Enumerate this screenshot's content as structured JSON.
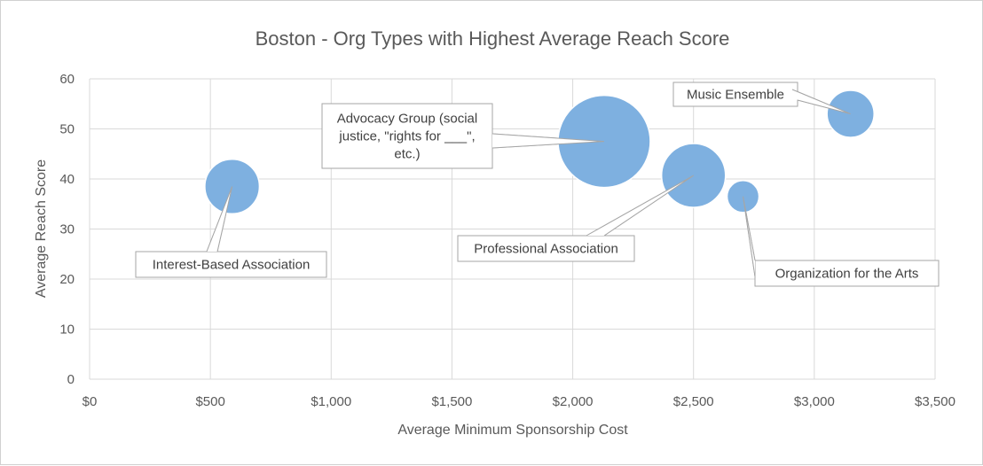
{
  "chart_data": {
    "type": "bubble",
    "title": "Boston - Org Types with Highest Average Reach Score",
    "xlabel": "Average Minimum Sponsorship Cost",
    "ylabel": "Average Reach Score",
    "xlim": [
      0,
      3500
    ],
    "ylim": [
      0,
      60
    ],
    "x_ticks": [
      "$0",
      "$500",
      "$1,000",
      "$1,500",
      "$2,000",
      "$2,500",
      "$3,000",
      "$3,500"
    ],
    "y_ticks": [
      "0",
      "10",
      "20",
      "30",
      "40",
      "50",
      "60"
    ],
    "grid": true,
    "bubble_color": "#7eb0e0",
    "points": [
      {
        "label": "Interest-Based Association",
        "x": 590,
        "y": 38.5,
        "size": 0.35
      },
      {
        "label": "Advocacy Group (social justice, \"rights for ___\", etc.)",
        "x": 2130,
        "y": 47.5,
        "size": 1.0
      },
      {
        "label": "Professional Association",
        "x": 2500,
        "y": 40.7,
        "size": 0.48
      },
      {
        "label": "Organization for the Arts",
        "x": 2705,
        "y": 36.5,
        "size": 0.12
      },
      {
        "label": "Music Ensemble",
        "x": 3150,
        "y": 53,
        "size": 0.26
      }
    ]
  }
}
